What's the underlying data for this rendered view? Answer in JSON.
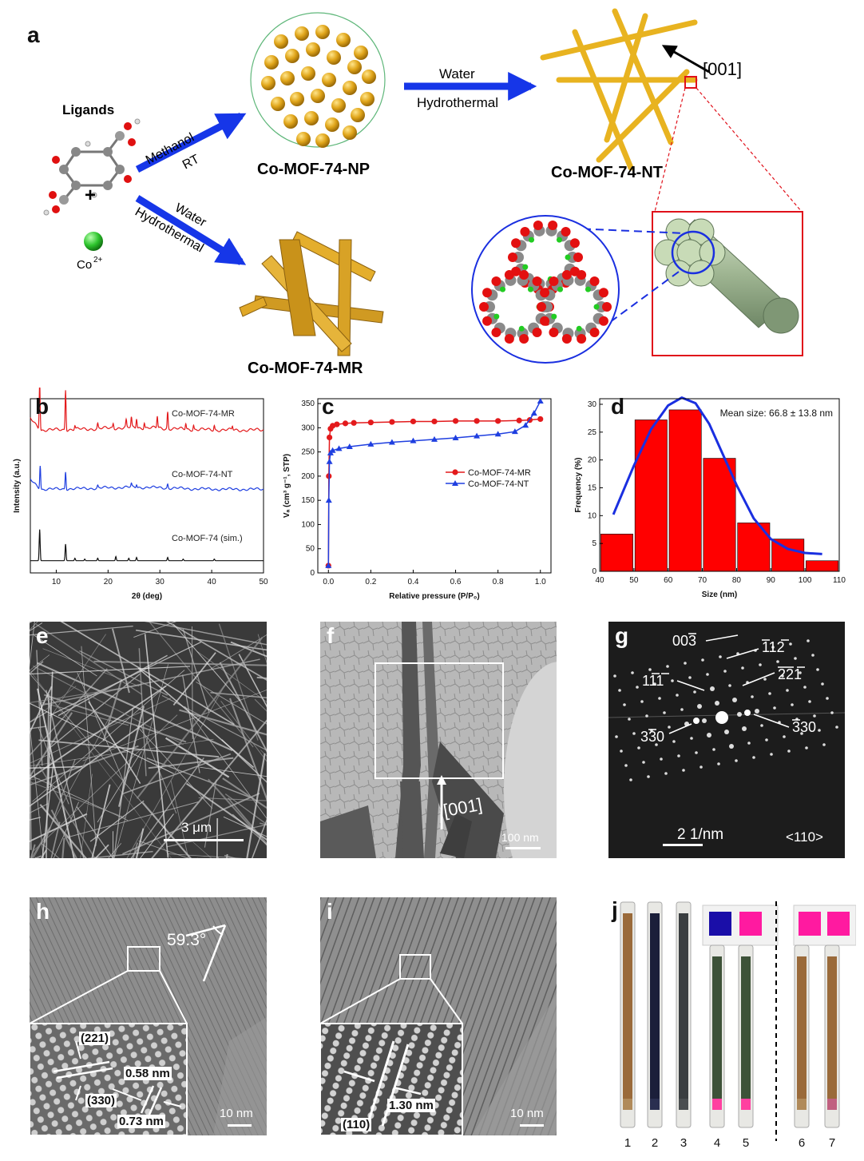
{
  "panels": {
    "a": "a",
    "b": "b",
    "c": "c",
    "d": "d",
    "e": "e",
    "f": "f",
    "g": "g",
    "h": "h",
    "i": "i",
    "j": "j"
  },
  "scheme": {
    "ligands_label": "Ligands",
    "co_label": "Co",
    "co_superscript": "2+",
    "plus": "+",
    "arrow_top_line1": "Methanol",
    "arrow_top_line2": "RT",
    "arrow_bottom_line1": "Water",
    "arrow_bottom_line2": "Hydrothermal",
    "arrow_right_line1": "Water",
    "arrow_right_line2": "Hydrothermal",
    "np_label": "Co-MOF-74-NP",
    "nt_label": "Co-MOF-74-NT",
    "mr_label": "Co-MOF-74-MR",
    "direction_label": "[001]"
  },
  "chart_data": [
    {
      "type": "line",
      "panel": "b",
      "xlabel": "2θ (deg)",
      "ylabel": "Intensity (a.u.)",
      "xlim": [
        5,
        50
      ],
      "xticks": [
        10,
        20,
        30,
        40,
        50
      ],
      "series": [
        {
          "name": "Co-MOF-74-MR",
          "color": "#e31a1c",
          "peaks": [
            [
              6.8,
              1.0
            ],
            [
              11.8,
              0.85
            ],
            [
              13.6,
              0.08
            ],
            [
              18.0,
              0.1
            ],
            [
              21.0,
              0.1
            ],
            [
              23.5,
              0.15
            ],
            [
              24.5,
              0.2
            ],
            [
              25.5,
              0.2
            ],
            [
              27.0,
              0.12
            ],
            [
              29.5,
              0.25
            ],
            [
              31.5,
              0.35
            ],
            [
              35.0,
              0.12
            ],
            [
              36.5,
              0.1
            ],
            [
              40.5,
              0.1
            ],
            [
              44.0,
              0.08
            ]
          ]
        },
        {
          "name": "Co-MOF-74-NT",
          "color": "#1f3fe0",
          "peaks": [
            [
              6.9,
              0.6
            ],
            [
              11.8,
              0.45
            ],
            [
              18.0,
              0.06
            ],
            [
              24.5,
              0.08
            ],
            [
              25.5,
              0.08
            ],
            [
              31.5,
              0.1
            ]
          ]
        },
        {
          "name": "Co-MOF-74 (sim.)",
          "color": "#111111",
          "peaks": [
            [
              6.8,
              0.75
            ],
            [
              11.8,
              0.4
            ],
            [
              13.6,
              0.06
            ],
            [
              15.5,
              0.04
            ],
            [
              18.0,
              0.06
            ],
            [
              21.5,
              0.1
            ],
            [
              24.0,
              0.06
            ],
            [
              25.5,
              0.08
            ],
            [
              31.5,
              0.08
            ],
            [
              34.5,
              0.04
            ],
            [
              40.5,
              0.04
            ]
          ]
        }
      ]
    },
    {
      "type": "line",
      "panel": "c",
      "xlabel": "Relative pressure (P/P₀)",
      "ylabel": "Vₐ (cm³ g⁻¹, STP)",
      "xlim": [
        -0.05,
        1.05
      ],
      "ylim": [
        0,
        360
      ],
      "xticks": [
        0.0,
        0.2,
        0.4,
        0.6,
        0.8,
        1.0
      ],
      "yticks": [
        0,
        50,
        100,
        150,
        200,
        250,
        300,
        350
      ],
      "legend_position": "center-right",
      "series": [
        {
          "name": "Co-MOF-74-MR",
          "color": "#e31a1c",
          "marker": "circle",
          "x": [
            0.0,
            0.002,
            0.005,
            0.01,
            0.02,
            0.04,
            0.08,
            0.12,
            0.2,
            0.3,
            0.4,
            0.5,
            0.6,
            0.7,
            0.8,
            0.9,
            0.95,
            1.0
          ],
          "y": [
            15,
            200,
            280,
            298,
            304,
            307,
            309,
            310,
            311,
            312,
            313,
            313,
            314,
            314,
            314,
            315,
            316,
            318
          ]
        },
        {
          "name": "Co-MOF-74-NT",
          "color": "#1f3fe0",
          "marker": "triangle",
          "x": [
            0.0,
            0.002,
            0.005,
            0.01,
            0.02,
            0.05,
            0.1,
            0.2,
            0.3,
            0.4,
            0.5,
            0.6,
            0.7,
            0.8,
            0.88,
            0.93,
            0.97,
            1.0
          ],
          "y": [
            15,
            150,
            230,
            248,
            253,
            257,
            261,
            266,
            270,
            273,
            276,
            279,
            283,
            287,
            292,
            305,
            330,
            355
          ]
        }
      ]
    },
    {
      "type": "bar",
      "panel": "d",
      "xlabel": "Size (nm)",
      "ylabel": "Frequency (%)",
      "xlim": [
        40,
        110
      ],
      "ylim": [
        0,
        31
      ],
      "xticks": [
        40,
        50,
        60,
        70,
        80,
        90,
        100,
        110
      ],
      "yticks": [
        0,
        5,
        10,
        15,
        20,
        25,
        30
      ],
      "bin_width": 10,
      "bin_centers": [
        45,
        55,
        65,
        75,
        85,
        95,
        105
      ],
      "values": [
        6.7,
        27.2,
        29.0,
        20.3,
        8.7,
        5.8,
        1.9
      ],
      "bar_color": "#ff0000",
      "fit_color": "#1a2fe0",
      "annotation": "Mean size: 66.8 ± 13.8 nm",
      "fit": {
        "x": [
          44,
          50,
          55,
          60,
          64,
          68,
          72,
          76,
          80,
          85,
          90,
          95,
          100,
          105
        ],
        "y": [
          10.2,
          19,
          25.5,
          29.8,
          31.2,
          30.2,
          26.5,
          21,
          15.5,
          9.5,
          5.8,
          4.0,
          3.3,
          3.1
        ]
      }
    }
  ],
  "micrographs": {
    "e_scale": "3 μm",
    "f_scale": "100 nm",
    "f_direction": "[001]",
    "g_spots": {
      "s003": "00",
      "s003_bar": "3",
      "s112": "112",
      "s111": "111",
      "s221": "221",
      "s330_left": "330",
      "s330_right": "330"
    },
    "g_scale": "2  1/nm",
    "g_zone": "<110>",
    "h_angle": "59.3°",
    "h_plane1": "(221)",
    "h_d1": "0.58 nm",
    "h_plane2": "(330)",
    "h_d2": "0.73 nm",
    "h_scale": "10 nm",
    "i_plane": "(110)",
    "i_d": "1.30 nm",
    "i_scale": "10 nm",
    "j_tubes": [
      "1",
      "2",
      "3",
      "4",
      "5",
      "6",
      "7"
    ]
  },
  "colors": {
    "red": "#e31a1c",
    "blue": "#1f3fe0",
    "gold": "#e0a81c",
    "tube_green": "#b5c9a8"
  }
}
